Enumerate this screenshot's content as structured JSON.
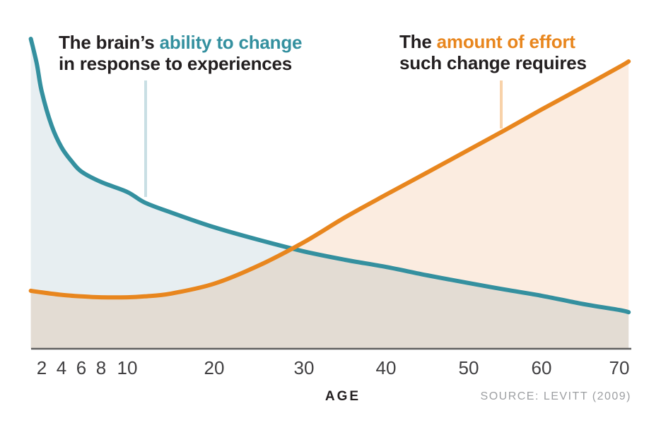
{
  "annotations": {
    "ability": {
      "black_prefix": "The brain’s ",
      "highlight": "ability to change",
      "line2": "in response to experiences"
    },
    "effort": {
      "black_prefix": "The ",
      "highlight": "amount of effort",
      "line2": "such change requires"
    }
  },
  "axis": {
    "label": "AGE"
  },
  "source": "SOURCE: LEVITT (2009)",
  "colors": {
    "teal": "#34909F",
    "orange": "#E8861E",
    "teal_fill": "#E7EEF1",
    "orange_fill": "#FBECE0",
    "pointer_teal": "#C9DFE4",
    "pointer_orange": "#F8D2A9",
    "axis": "#606060",
    "text_dark": "#231F20",
    "tick_text": "#414042",
    "source_text": "#9D9FA2"
  },
  "chart_data": {
    "type": "line",
    "title": "",
    "xlabel": "AGE",
    "ylabel": "",
    "y_range": [
      0,
      100
    ],
    "grid": false,
    "legend_position": "annotations-above-curves",
    "x_tick_labels": [
      "2",
      "4",
      "6",
      "8",
      "10",
      "20",
      "30",
      "40",
      "50",
      "60",
      "70"
    ],
    "tick_ages": [
      2,
      4,
      6,
      8,
      10,
      20,
      30,
      40,
      50,
      60,
      70
    ],
    "source": "SOURCE: LEVITT (2009)",
    "series": [
      {
        "name": "The brain's ability to change in response to experiences",
        "color_key": "teal",
        "fill_key": "teal_fill",
        "points": [
          [
            0.9,
            100
          ],
          [
            1.5,
            92
          ],
          [
            2,
            83
          ],
          [
            3,
            72
          ],
          [
            4,
            65
          ],
          [
            5,
            60.6
          ],
          [
            6,
            57.2
          ],
          [
            8,
            53.8
          ],
          [
            10,
            50.6
          ],
          [
            12,
            47.2
          ],
          [
            15,
            44
          ],
          [
            20,
            39.2
          ],
          [
            25,
            35.1
          ],
          [
            30,
            31.4
          ],
          [
            35,
            28.7
          ],
          [
            40,
            26.4
          ],
          [
            45,
            23.7
          ],
          [
            50,
            21.2
          ],
          [
            55,
            19.1
          ],
          [
            60,
            17.1
          ],
          [
            65,
            14.6
          ],
          [
            70,
            12.5
          ],
          [
            71.2,
            11.8
          ]
        ]
      },
      {
        "name": "The amount of effort such change requires",
        "color_key": "orange",
        "fill_key": "orange_fill",
        "points": [
          [
            0.9,
            18.7
          ],
          [
            2,
            18.2
          ],
          [
            4,
            17.4
          ],
          [
            6,
            16.9
          ],
          [
            8,
            16.6
          ],
          [
            10,
            16.6
          ],
          [
            12,
            16.9
          ],
          [
            15,
            17.8
          ],
          [
            20,
            21.0
          ],
          [
            25,
            26.9
          ],
          [
            30,
            34.4
          ],
          [
            35,
            42.4
          ],
          [
            40,
            49.7
          ],
          [
            45,
            56.9
          ],
          [
            50,
            64.2
          ],
          [
            55,
            70.6
          ],
          [
            60,
            77.2
          ],
          [
            65,
            84.0
          ],
          [
            70,
            90.9
          ],
          [
            71.2,
            92.7
          ]
        ]
      }
    ]
  }
}
